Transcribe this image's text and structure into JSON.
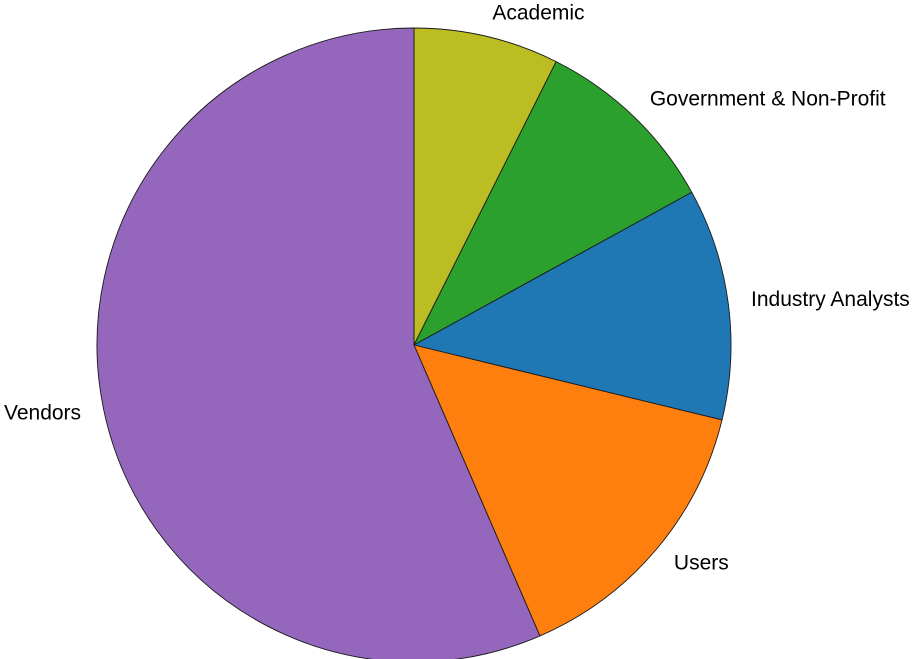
{
  "chart_data": {
    "type": "pie",
    "title": "",
    "start_angle_deg": 90,
    "direction": "clockwise",
    "legend": "none",
    "slices": [
      {
        "label": "Academic",
        "value": 7.4,
        "color": "#bcbd22"
      },
      {
        "label": "Government & Non-Profit",
        "value": 9.6,
        "color": "#2ca02c"
      },
      {
        "label": "Industry Analysts",
        "value": 11.8,
        "color": "#1f77b4"
      },
      {
        "label": "Users",
        "value": 14.7,
        "color": "#ff7f0e"
      },
      {
        "label": "Vendors",
        "value": 56.5,
        "color": "#9467bd"
      }
    ]
  }
}
